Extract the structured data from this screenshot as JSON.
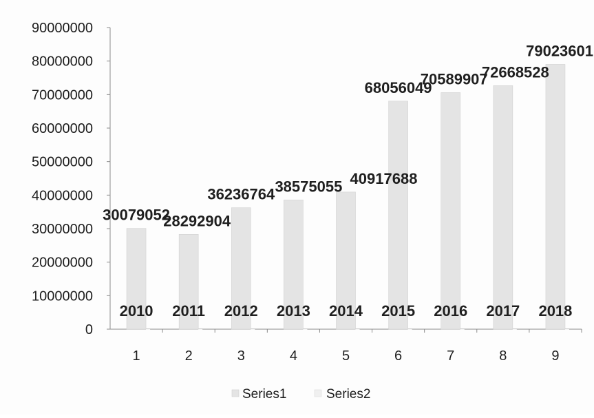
{
  "chart_data": {
    "type": "bar",
    "categories": [
      "1",
      "2",
      "3",
      "4",
      "5",
      "6",
      "7",
      "8",
      "9"
    ],
    "series": [
      {
        "name": "Series1",
        "values": [
          30079052,
          28292904,
          36236764,
          38575055,
          40917688,
          68056049,
          70589907,
          72668528,
          79023601
        ]
      },
      {
        "name": "Series2",
        "values": [
          2010,
          2011,
          2012,
          2013,
          2014,
          2015,
          2016,
          2017,
          2018
        ]
      }
    ],
    "value_labels": [
      "30079052",
      "28292904",
      "36236764",
      "38575055",
      "40917688",
      "68056049",
      "70589907",
      "72668528",
      "79023601"
    ],
    "series2_labels": [
      "2010",
      "2011",
      "2012",
      "2013",
      "2014",
      "2015",
      "2016",
      "2017",
      "2018"
    ],
    "yticks": [
      "0",
      "10000000",
      "20000000",
      "30000000",
      "40000000",
      "50000000",
      "60000000",
      "70000000",
      "80000000",
      "90000000"
    ],
    "ylim": [
      0,
      90000000
    ],
    "legend": {
      "placement": "bottom"
    },
    "grid": false,
    "colors": {
      "series1": "#e4e4e4",
      "series2": "#f0f0f0",
      "axis": "#8c8c8c",
      "text": "#1d1d1d"
    }
  }
}
